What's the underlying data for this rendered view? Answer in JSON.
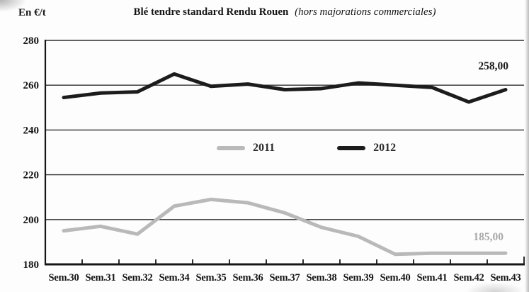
{
  "header": {
    "unit_label": "En €/t",
    "title_bold": "Blé tendre standard Rendu Rouen",
    "title_note": "(hors majorations commerciales)"
  },
  "legend": {
    "items": [
      {
        "label": "2011",
        "color": "#b9b9b9"
      },
      {
        "label": "2012",
        "color": "#1c1c1c"
      }
    ]
  },
  "annotations": {
    "series_2012_end": "258,00",
    "series_2011_end": "185,00"
  },
  "chart_data": {
    "type": "line",
    "title": "Blé tendre standard Rendu Rouen (hors majorations commerciales)",
    "ylabel": "En €/t",
    "xlabel": "",
    "categories": [
      "Sem.30",
      "Sem.31",
      "Sem.32",
      "Sem.34",
      "Sem.35",
      "Sem.36",
      "Sem.37",
      "Sem.38",
      "Sem.39",
      "Sem.40",
      "Sem.41",
      "Sem.42",
      "Sem.43"
    ],
    "series": [
      {
        "name": "2011",
        "color": "#b9b9b9",
        "values": [
          195,
          197,
          193.5,
          206,
          209,
          207.5,
          203,
          196.5,
          192.5,
          184.5,
          185,
          185,
          185
        ]
      },
      {
        "name": "2012",
        "color": "#1c1c1c",
        "values": [
          254.5,
          256.5,
          257,
          265,
          259.5,
          260.5,
          258,
          258.5,
          261,
          260,
          259,
          252.5,
          258
        ]
      }
    ],
    "end_labels": {
      "2011": "185,00",
      "2012": "258,00"
    },
    "ylim": [
      180,
      280
    ],
    "yticks": [
      180,
      200,
      220,
      240,
      260,
      280
    ],
    "grid": true,
    "legend_position": "inside-center"
  }
}
